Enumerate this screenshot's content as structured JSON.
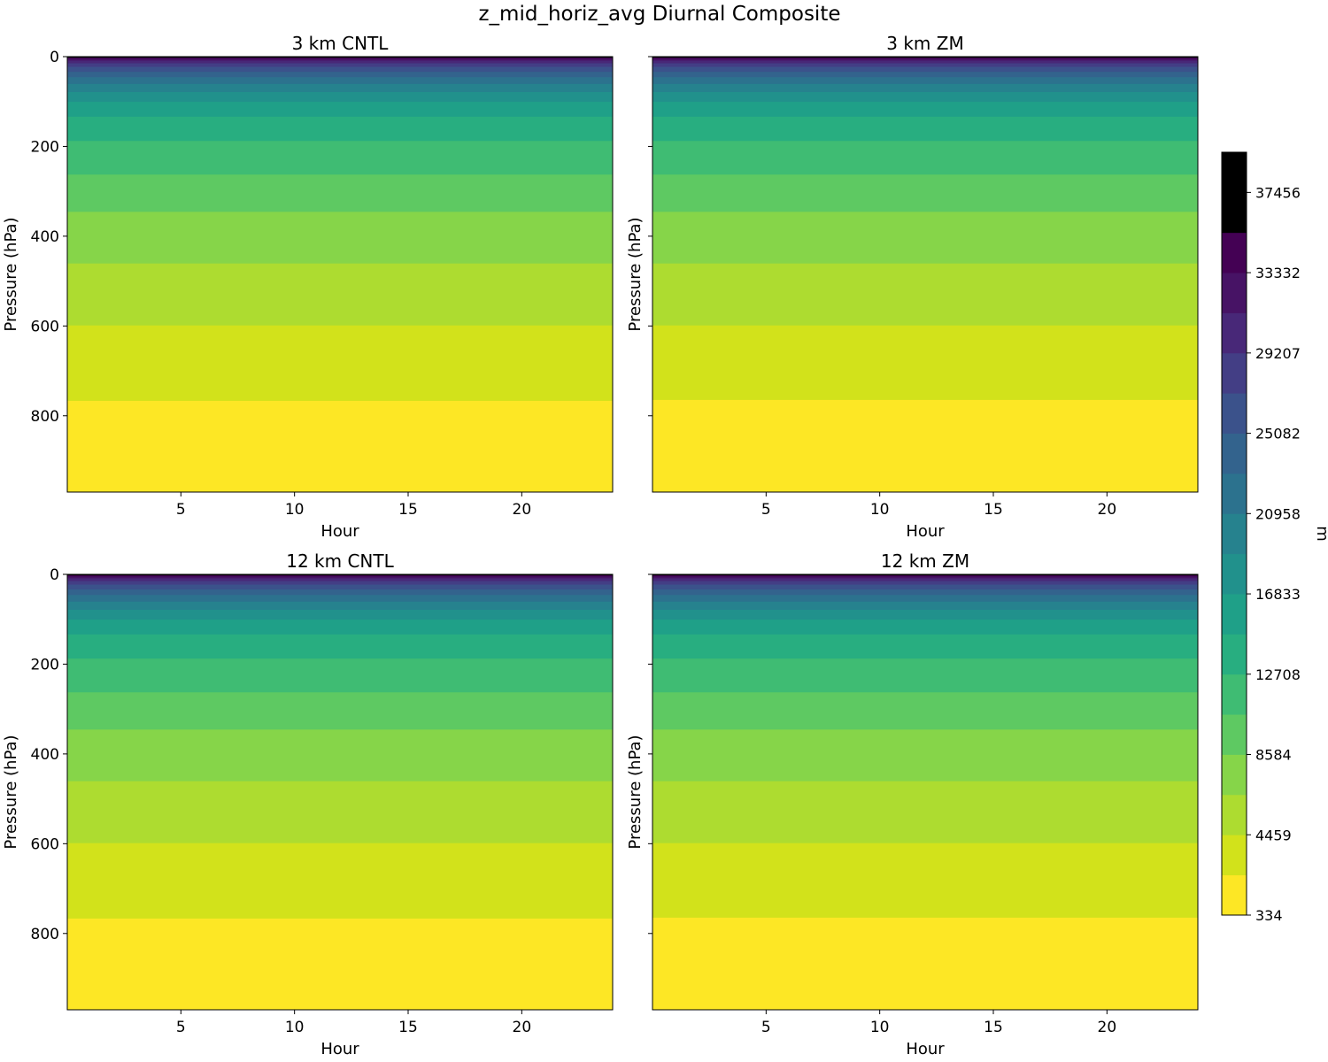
{
  "figure": {
    "suptitle": "z_mid_horiz_avg Diurnal Composite"
  },
  "chart_data": {
    "type": "heatmap",
    "subtype": "filled-contour",
    "title": "z_mid_horiz_avg Diurnal Composite",
    "xlabel": "Hour",
    "ylabel": "Pressure (hPa)",
    "xlim": [
      0,
      24
    ],
    "ylim": [
      970,
      0
    ],
    "x_ticks": [
      5,
      10,
      15,
      20
    ],
    "y_ticks": [
      0,
      200,
      400,
      600,
      800
    ],
    "grid": false,
    "contour_levels": [
      334,
      2396,
      4459,
      6521,
      8584,
      10646,
      12708,
      14771,
      16833,
      18895,
      20958,
      23020,
      25082,
      27145,
      29207,
      31269,
      33332,
      35394,
      37456,
      39519
    ],
    "level_colors": [
      "#fde725",
      "#d2e21b",
      "#addc30",
      "#86d549",
      "#5ec962",
      "#3fbc73",
      "#28ae80",
      "#1fa088",
      "#21918c",
      "#26828e",
      "#2c728e",
      "#33638d",
      "#3b528b",
      "#433e85",
      "#482878",
      "#471365",
      "#440154"
    ],
    "colorbar": {
      "label": "m",
      "tick_labels": [
        "334",
        "4459",
        "8584",
        "12708",
        "16833",
        "20958",
        "25082",
        "29207",
        "33332",
        "37456"
      ]
    },
    "panels": [
      {
        "title": "3 km CNTL",
        "level_boundaries_hPa": [
          766,
          598,
          460,
          345,
          262,
          187,
          133,
          100,
          78,
          60,
          45,
          33,
          22,
          14,
          8,
          4,
          1.5
        ]
      },
      {
        "title": "3 km ZM",
        "level_boundaries_hPa": [
          764,
          598,
          460,
          345,
          262,
          187,
          133,
          100,
          78,
          60,
          45,
          33,
          22,
          14,
          8,
          4,
          1.5
        ]
      },
      {
        "title": "12 km CNTL",
        "level_boundaries_hPa": [
          766,
          598,
          460,
          345,
          262,
          187,
          133,
          100,
          78,
          60,
          45,
          33,
          22,
          14,
          8,
          4,
          1.5
        ]
      },
      {
        "title": "12 km ZM",
        "level_boundaries_hPa": [
          764,
          598,
          460,
          345,
          262,
          187,
          133,
          100,
          78,
          60,
          45,
          33,
          22,
          14,
          8,
          4,
          1.5
        ]
      }
    ]
  }
}
